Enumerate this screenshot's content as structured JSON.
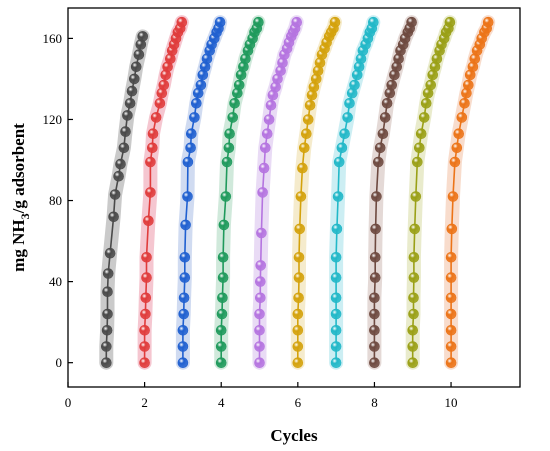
{
  "chart_data": {
    "type": "scatter",
    "xlabel": "Cycles",
    "ylabel": {
      "prefix": "mg NH",
      "sub": "3",
      "suffix": "/g adsorbent"
    },
    "xlim": [
      0,
      11.8
    ],
    "ylim": [
      -12,
      175
    ],
    "xticks": [
      0,
      2,
      4,
      6,
      8,
      10
    ],
    "yticks": [
      0,
      40,
      80,
      120,
      160
    ],
    "grid": false,
    "legend": "none",
    "series": [
      {
        "color": "#4a4a4a",
        "halo": "#bdbdbd",
        "x": [
          1.0,
          1.0,
          1.02,
          1.03,
          1.03,
          1.05,
          1.1,
          1.19,
          1.23,
          1.32,
          1.37,
          1.46,
          1.5,
          1.55,
          1.62,
          1.67,
          1.73,
          1.78,
          1.85,
          1.9,
          1.95
        ],
        "y": [
          0,
          8,
          16,
          24,
          35,
          44,
          54,
          72,
          83,
          92,
          98,
          106,
          114,
          122,
          128,
          134,
          140,
          146,
          152,
          157,
          161
        ]
      },
      {
        "color": "#e03c3c",
        "halo": "#f2b8c4",
        "x": [
          2.0,
          2.0,
          2.0,
          2.02,
          2.03,
          2.05,
          2.05,
          2.1,
          2.15,
          2.15,
          2.2,
          2.22,
          2.3,
          2.4,
          2.45,
          2.5,
          2.55,
          2.6,
          2.67,
          2.72,
          2.77,
          2.82,
          2.87,
          2.93,
          2.97
        ],
        "y": [
          0,
          8,
          16,
          24,
          32,
          42,
          52,
          70,
          84,
          99,
          106,
          113,
          121,
          128,
          133,
          137,
          142,
          146,
          150,
          154,
          157,
          160,
          163,
          165,
          168
        ]
      },
      {
        "color": "#2060d0",
        "halo": "#c4d2ee",
        "x": [
          3.0,
          3.0,
          3.0,
          3.02,
          3.03,
          3.05,
          3.05,
          3.07,
          3.12,
          3.13,
          3.2,
          3.22,
          3.3,
          3.35,
          3.4,
          3.47,
          3.52,
          3.58,
          3.63,
          3.7,
          3.75,
          3.82,
          3.88,
          3.93,
          3.97
        ],
        "y": [
          0,
          8,
          16,
          24,
          32,
          42,
          52,
          68,
          82,
          99,
          106,
          113,
          121,
          128,
          133,
          137,
          142,
          146,
          150,
          154,
          157,
          160,
          163,
          165,
          168
        ]
      },
      {
        "color": "#1f9a5c",
        "halo": "#c4e4d2",
        "x": [
          4.0,
          4.0,
          4.0,
          4.02,
          4.03,
          4.05,
          4.05,
          4.07,
          4.12,
          4.15,
          4.2,
          4.22,
          4.3,
          4.35,
          4.42,
          4.47,
          4.52,
          4.58,
          4.63,
          4.7,
          4.75,
          4.82,
          4.87,
          4.93,
          4.97
        ],
        "y": [
          0,
          8,
          16,
          24,
          32,
          42,
          52,
          68,
          82,
          99,
          106,
          113,
          121,
          128,
          133,
          137,
          142,
          146,
          150,
          154,
          157,
          160,
          163,
          165,
          168
        ]
      },
      {
        "color": "#b574e0",
        "halo": "#e4d2f2",
        "x": [
          5.0,
          5.0,
          5.0,
          5.0,
          5.02,
          5.02,
          5.03,
          5.05,
          5.08,
          5.12,
          5.15,
          5.2,
          5.25,
          5.3,
          5.35,
          5.42,
          5.47,
          5.55,
          5.6,
          5.65,
          5.72,
          5.77,
          5.83,
          5.88,
          5.93,
          5.97
        ],
        "y": [
          0,
          8,
          16,
          24,
          32,
          40,
          48,
          64,
          84,
          96,
          106,
          113,
          120,
          127,
          132,
          136,
          140,
          144,
          148,
          152,
          155,
          158,
          161,
          163,
          165,
          168
        ]
      },
      {
        "color": "#d4a20c",
        "halo": "#f2e6bf",
        "x": [
          6.0,
          6.0,
          6.0,
          6.0,
          6.02,
          6.03,
          6.03,
          6.05,
          6.08,
          6.12,
          6.17,
          6.22,
          6.27,
          6.32,
          6.37,
          6.42,
          6.48,
          6.53,
          6.58,
          6.63,
          6.7,
          6.75,
          6.82,
          6.87,
          6.93,
          6.97
        ],
        "y": [
          0,
          8,
          16,
          24,
          32,
          42,
          52,
          66,
          82,
          96,
          106,
          113,
          120,
          127,
          132,
          136,
          140,
          144,
          148,
          152,
          155,
          158,
          161,
          163,
          165,
          168
        ]
      },
      {
        "color": "#22b8c8",
        "halo": "#bfeaf0",
        "x": [
          7.0,
          7.0,
          7.0,
          7.0,
          7.0,
          7.0,
          7.0,
          7.02,
          7.05,
          7.08,
          7.15,
          7.22,
          7.3,
          7.35,
          7.42,
          7.48,
          7.55,
          7.6,
          7.65,
          7.7,
          7.77,
          7.83,
          7.88,
          7.93,
          7.97
        ],
        "y": [
          0,
          8,
          16,
          24,
          32,
          42,
          52,
          66,
          82,
          99,
          106,
          113,
          121,
          128,
          133,
          137,
          142,
          146,
          150,
          154,
          157,
          160,
          163,
          165,
          168
        ]
      },
      {
        "color": "#6e4a40",
        "halo": "#ddd0cc",
        "x": [
          8.0,
          8.0,
          8.0,
          8.0,
          8.0,
          8.02,
          8.02,
          8.03,
          8.05,
          8.1,
          8.15,
          8.22,
          8.28,
          8.33,
          8.4,
          8.45,
          8.52,
          8.58,
          8.63,
          8.68,
          8.75,
          8.8,
          8.87,
          8.92,
          8.97
        ],
        "y": [
          0,
          8,
          16,
          24,
          32,
          42,
          52,
          66,
          82,
          99,
          106,
          113,
          121,
          128,
          133,
          137,
          142,
          146,
          150,
          154,
          157,
          160,
          163,
          165,
          168
        ]
      },
      {
        "color": "#9aa016",
        "halo": "#e4e6bf",
        "x": [
          9.0,
          9.0,
          9.0,
          9.02,
          9.02,
          9.03,
          9.03,
          9.05,
          9.08,
          9.12,
          9.17,
          9.22,
          9.3,
          9.35,
          9.4,
          9.47,
          9.52,
          9.58,
          9.63,
          9.7,
          9.75,
          9.82,
          9.87,
          9.93,
          9.97
        ],
        "y": [
          0,
          8,
          16,
          24,
          32,
          42,
          52,
          66,
          82,
          99,
          106,
          113,
          121,
          128,
          133,
          137,
          142,
          146,
          150,
          154,
          157,
          160,
          163,
          165,
          168
        ]
      },
      {
        "color": "#ec7418",
        "halo": "#f6d3bf",
        "x": [
          10.0,
          10.0,
          10.0,
          10.0,
          10.0,
          10.0,
          10.0,
          10.02,
          10.05,
          10.1,
          10.15,
          10.2,
          10.28,
          10.35,
          10.4,
          10.45,
          10.5,
          10.57,
          10.62,
          10.68,
          10.75,
          10.8,
          10.87,
          10.93,
          10.97
        ],
        "y": [
          0,
          8,
          16,
          24,
          32,
          42,
          52,
          66,
          82,
          99,
          106,
          113,
          121,
          128,
          133,
          137,
          142,
          146,
          150,
          154,
          157,
          160,
          163,
          165,
          168
        ]
      }
    ]
  }
}
